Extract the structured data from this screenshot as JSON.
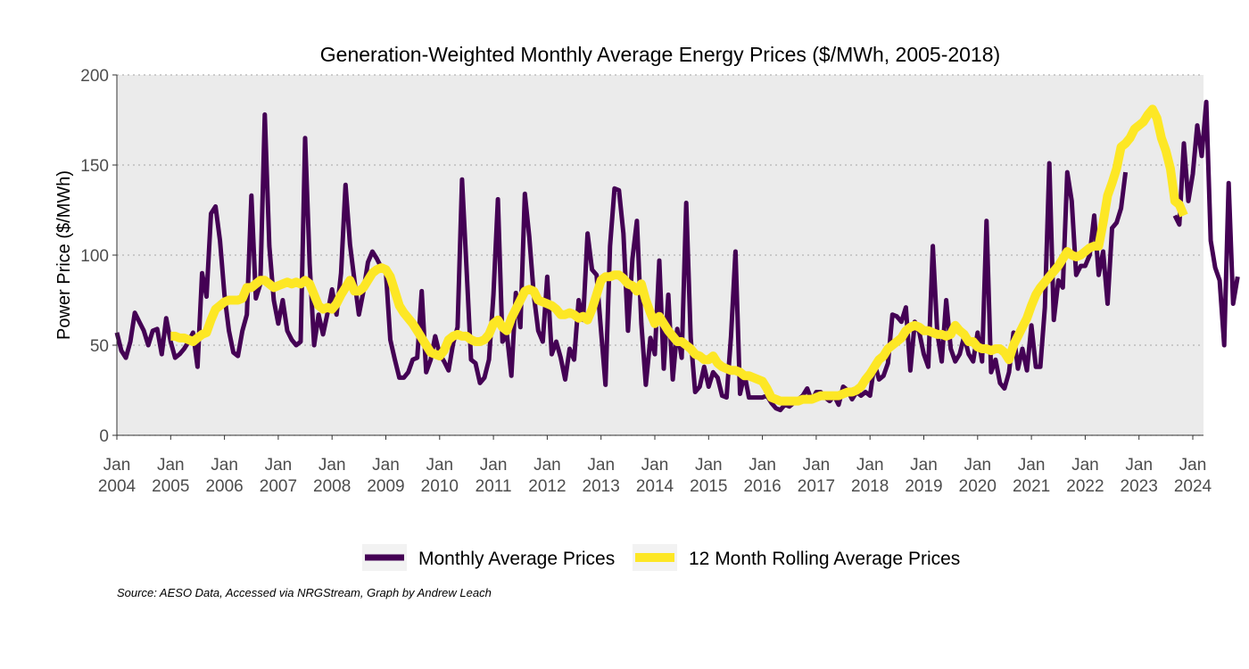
{
  "chart_data": {
    "type": "line",
    "title": "Generation-Weighted Monthly Average Energy Prices ($/MWh, 2005-2018)",
    "xlabel": "",
    "ylabel": "Power Price ($/MWh)",
    "ylim": [
      0,
      200
    ],
    "yticks": [
      0,
      50,
      100,
      150,
      200
    ],
    "xlim": [
      "2004-01",
      "2024-03"
    ],
    "xticks": [
      {
        "year": 2004,
        "month": "Jan",
        "label_year": "2004"
      },
      {
        "year": 2005,
        "month": "Jan",
        "label_year": "2005"
      },
      {
        "year": 2006,
        "month": "Jan",
        "label_year": "2006"
      },
      {
        "year": 2007,
        "month": "Jan",
        "label_year": "2007"
      },
      {
        "year": 2008,
        "month": "Jan",
        "label_year": "2008"
      },
      {
        "year": 2009,
        "month": "Jan",
        "label_year": "2009"
      },
      {
        "year": 2010,
        "month": "Jan",
        "label_year": "2010"
      },
      {
        "year": 2011,
        "month": "Jan",
        "label_year": "2011"
      },
      {
        "year": 2012,
        "month": "Jan",
        "label_year": "2012"
      },
      {
        "year": 2013,
        "month": "Jan",
        "label_year": "2013"
      },
      {
        "year": 2014,
        "month": "Jan",
        "label_year": "2014"
      },
      {
        "year": 2015,
        "month": "Jan",
        "label_year": "2015"
      },
      {
        "year": 2016,
        "month": "Jan",
        "label_year": "2016"
      },
      {
        "year": 2017,
        "month": "Jan",
        "label_year": "2017"
      },
      {
        "year": 2018,
        "month": "Jan",
        "label_year": "2018"
      },
      {
        "year": 2019,
        "month": "Jan",
        "label_year": "2019"
      },
      {
        "year": 2020,
        "month": "Jan",
        "label_year": "2020"
      },
      {
        "year": 2021,
        "month": "Jan",
        "label_year": "2021"
      },
      {
        "year": 2022,
        "month": "Jan",
        "label_year": "2022"
      },
      {
        "year": 2023,
        "month": "Jan",
        "label_year": "2023"
      },
      {
        "year": 2024,
        "month": "Jan",
        "label_year": "2024"
      }
    ],
    "grid": "horizontal dotted",
    "legend_position": "bottom",
    "colors": {
      "monthly": "#440154",
      "rolling": "#fde725",
      "panel": "#ebebeb",
      "grid": "#b3b3b3"
    },
    "series": [
      {
        "name": "Monthly Average Prices",
        "start": "2004-01",
        "values": [
          57,
          47,
          43,
          52,
          68,
          63,
          58,
          50,
          58,
          59,
          45,
          65,
          52,
          43,
          45,
          48,
          52,
          57,
          38,
          90,
          77,
          123,
          127,
          108,
          78,
          58,
          46,
          44,
          58,
          67,
          133,
          76,
          84,
          178,
          105,
          75,
          62,
          75,
          58,
          53,
          50,
          52,
          165,
          95,
          50,
          67,
          56,
          68,
          81,
          67,
          90,
          139,
          106,
          86,
          67,
          80,
          96,
          102,
          98,
          93,
          91,
          53,
          42,
          32,
          32,
          35,
          42,
          43,
          80,
          35,
          42,
          55,
          45,
          41,
          36,
          51,
          60,
          142,
          92,
          42,
          40,
          29,
          32,
          42,
          78,
          131,
          52,
          56,
          33,
          79,
          60,
          134,
          110,
          78,
          58,
          52,
          88,
          45,
          52,
          43,
          31,
          48,
          42,
          75,
          64,
          112,
          92,
          89,
          58,
          28,
          105,
          137,
          136,
          112,
          58,
          98,
          119,
          62,
          28,
          54,
          45,
          97,
          37,
          78,
          31,
          59,
          43,
          129,
          54,
          24,
          27,
          38,
          27,
          35,
          32,
          22,
          21,
          55,
          102,
          23,
          34,
          21,
          21,
          21,
          21,
          22,
          18,
          15,
          14,
          17,
          16,
          18,
          20,
          22,
          26,
          19,
          24,
          24,
          21,
          19,
          22,
          17,
          27,
          25,
          20,
          24,
          22,
          24,
          22,
          40,
          31,
          33,
          40,
          67,
          66,
          63,
          71,
          36,
          63,
          57,
          45,
          38,
          105,
          57,
          41,
          75,
          48,
          41,
          45,
          55,
          45,
          41,
          57,
          41,
          119,
          35,
          42,
          29,
          26,
          35,
          57,
          37,
          48,
          36,
          61,
          38,
          38,
          71,
          151,
          64,
          86,
          82,
          146,
          130,
          89,
          94,
          94,
          100,
          122,
          89,
          102,
          73,
          115,
          118,
          126,
          146,
          null,
          null,
          null,
          null,
          175,
          null,
          null,
          null,
          null,
          null,
          122,
          117,
          162,
          130,
          145,
          172,
          155,
          185,
          108,
          93,
          86,
          50,
          140,
          73,
          88
        ]
      },
      {
        "name": "12 Month Rolling Average Prices",
        "start": "2005-01",
        "values": [
          55,
          55,
          54,
          54,
          53,
          52,
          54,
          56,
          57,
          64,
          70,
          72,
          74,
          75,
          75,
          75,
          76,
          82,
          82,
          84,
          86,
          86,
          84,
          82,
          83,
          84,
          85,
          84,
          85,
          84,
          86,
          84,
          78,
          72,
          70,
          71,
          70,
          73,
          78,
          82,
          86,
          80,
          80,
          82,
          86,
          90,
          92,
          93,
          92,
          88,
          80,
          72,
          68,
          65,
          62,
          58,
          54,
          50,
          46,
          45,
          44,
          47,
          53,
          55,
          56,
          55,
          55,
          53,
          52,
          52,
          53,
          56,
          62,
          64,
          60,
          58,
          65,
          70,
          75,
          80,
          81,
          80,
          75,
          74,
          73,
          72,
          70,
          67,
          67,
          68,
          67,
          65,
          66,
          64,
          70,
          78,
          86,
          88,
          88,
          89,
          89,
          87,
          84,
          83,
          80,
          84,
          75,
          68,
          62,
          66,
          62,
          58,
          55,
          52,
          52,
          50,
          48,
          45,
          44,
          42,
          42,
          44,
          40,
          38,
          37,
          36,
          36,
          35,
          33,
          33,
          32,
          31,
          30,
          26,
          21,
          20,
          19,
          19,
          19,
          19,
          19,
          20,
          20,
          20,
          21,
          22,
          22,
          22,
          22,
          22,
          23,
          24,
          24,
          25,
          27,
          31,
          34,
          38,
          42,
          44,
          48,
          50,
          52,
          54,
          58,
          60,
          61,
          60,
          58,
          58,
          57,
          56,
          56,
          55,
          56,
          61,
          58,
          56,
          52,
          52,
          49,
          48,
          48,
          47,
          48,
          48,
          46,
          42,
          50,
          55,
          60,
          65,
          72,
          78,
          82,
          85,
          88,
          91,
          94,
          98,
          102,
          100,
          99,
          100,
          102,
          104,
          105,
          105,
          118,
          133,
          140,
          148,
          160,
          162,
          165,
          170,
          172,
          174,
          178,
          181,
          176,
          165,
          158,
          148,
          130,
          128,
          122
        ]
      }
    ],
    "caption": "Source: AESO Data, Accessed via NRGStream, Graph by Andrew Leach"
  }
}
